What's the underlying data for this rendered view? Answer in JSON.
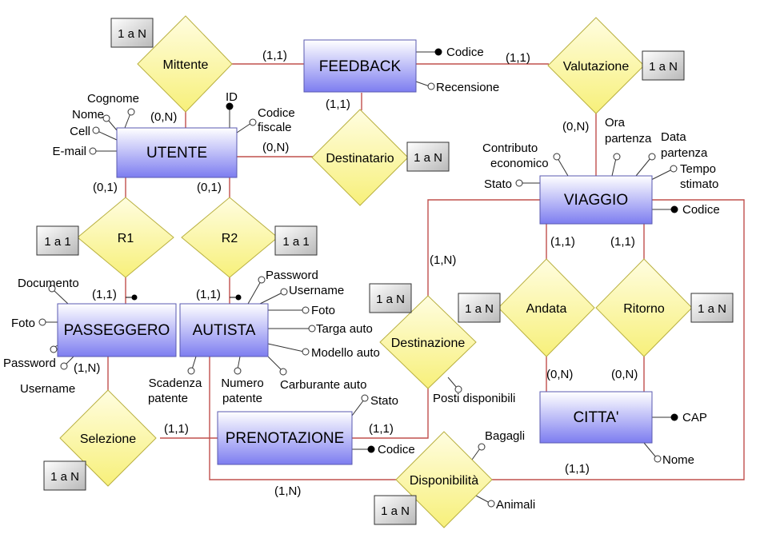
{
  "entities": {
    "feedback": "FEEDBACK",
    "utente": "UTENTE",
    "viaggio": "VIAGGIO",
    "passeggero": "PASSEGGERO",
    "autista": "AUTISTA",
    "prenotazione": "PRENOTAZIONE",
    "citta": "CITTA'"
  },
  "relationships": {
    "mittente": "Mittente",
    "valutazione": "Valutazione",
    "destinatario": "Destinatario",
    "r1": "R1",
    "r2": "R2",
    "destinazione": "Destinazione",
    "andata": "Andata",
    "ritorno": "Ritorno",
    "selezione": "Selezione",
    "disponibilita": "Disponibilità"
  },
  "boxes": {
    "mittente": "1 a N",
    "valutazione": "1 a N",
    "destinatario": "1 a N",
    "r1": "1 a 1",
    "r2": "1 a 1",
    "destinazione": "1 a N",
    "andata": "1 a N",
    "ritorno": "1 a N",
    "selezione": "1 a N",
    "disponibilita": "1 a N"
  },
  "attributes": {
    "feedback_codice": "Codice",
    "feedback_recensione": "Recensione",
    "utente_id": "ID",
    "utente_codice_fiscale_1": "Codice",
    "utente_codice_fiscale_2": "fiscale",
    "utente_cognome": "Cognome",
    "utente_nome": "Nome",
    "utente_cell": "Cell",
    "utente_email": "E-mail",
    "viaggio_ora_1": "Ora",
    "viaggio_ora_2": "partenza",
    "viaggio_data_1": "Data",
    "viaggio_data_2": "partenza",
    "viaggio_tempo_1": "Tempo",
    "viaggio_tempo_2": "stimato",
    "viaggio_contributo_1": "Contributo",
    "viaggio_contributo_2": "economico",
    "viaggio_stato": "Stato",
    "viaggio_codice": "Codice",
    "pass_documento": "Documento",
    "pass_foto": "Foto",
    "pass_password": "Password",
    "pass_username": "Username",
    "aut_password": "Password",
    "aut_username": "Username",
    "aut_foto": "Foto",
    "aut_targa": "Targa auto",
    "aut_modello": "Modello auto",
    "aut_carburante": "Carburante auto",
    "aut_numero_1": "Numero",
    "aut_numero_2": "patente",
    "aut_scadenza_1": "Scadenza",
    "aut_scadenza_2": "patente",
    "pren_stato": "Stato",
    "pren_codice": "Codice",
    "dest_posti": "Posti disponibili",
    "citta_cap": "CAP",
    "citta_nome": "Nome",
    "disp_bagagli": "Bagagli",
    "disp_animali": "Animali"
  },
  "cardinalities": {
    "feedback_mittente": "(1,1)",
    "feedback_valutazione": "(1,1)",
    "feedback_destinatario": "(1,1)",
    "utente_mittente": "(0,N)",
    "utente_destinatario": "(0,N)",
    "utente_r1": "(0,1)",
    "utente_r2": "(0,1)",
    "viaggio_valutazione": "(0,N)",
    "passeggero_r1": "(1,1)",
    "autista_r2": "(1,1)",
    "viaggio_destinazione": "(1,N)",
    "viaggio_andata": "(1,1)",
    "viaggio_ritorno": "(1,1)",
    "citta_andata": "(0,N)",
    "citta_ritorno": "(0,N)",
    "passeggero_selezione": "(1,N)",
    "prenotazione_selezione": "(1,1)",
    "prenotazione_destinazione": "(1,1)",
    "autista_disponibilita": "(1,N)",
    "viaggio_disponibilita": "(1,1)"
  }
}
